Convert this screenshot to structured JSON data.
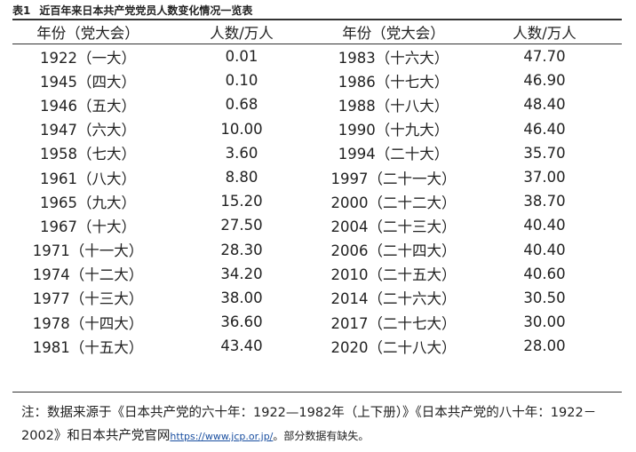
{
  "caption": {
    "number": "表1",
    "title": "近百年来日本共产党党员人数变化情况一览表"
  },
  "headers": [
    "年份（党大会）",
    "人数/万人",
    "年份（党大会）",
    "人数/万人"
  ],
  "rows": [
    [
      "1922（一大）",
      "0.01",
      "1983（十六大）",
      "47.70"
    ],
    [
      "1945（四大）",
      "0.10",
      "1986（十七大）",
      "46.90"
    ],
    [
      "1946（五大）",
      "0.68",
      "1988（十八大）",
      "48.40"
    ],
    [
      "1947（六大）",
      "10.00",
      "1990（十九大）",
      "46.40"
    ],
    [
      "1958（七大）",
      "3.60",
      "1994（二十大）",
      "35.70"
    ],
    [
      "1961（八大）",
      "8.80",
      "1997（二十一大）",
      "37.00"
    ],
    [
      "1965（九大）",
      "15.20",
      "2000（二十二大）",
      "38.70"
    ],
    [
      "1967（十大）",
      "27.50",
      "2004（二十三大）",
      "40.40"
    ],
    [
      "1971（十一大）",
      "28.30",
      "2006（二十四大）",
      "40.40"
    ],
    [
      "1974（十二大）",
      "34.20",
      "2010（二十五大）",
      "40.60"
    ],
    [
      "1977（十三大）",
      "38.00",
      "2014（二十六大）",
      "30.50"
    ],
    [
      "1978（十四大）",
      "36.60",
      "2017（二十七大）",
      "30.00"
    ],
    [
      "1981（十五大）",
      "43.40",
      "2020（二十八大）",
      "28.00"
    ]
  ],
  "note": {
    "text": "注：数据来源于《日本共产党的六十年：1922—1982年（上下册）》《日本共产党的八十年：1922－2002》和日本共产党官网",
    "url": "https://www.jcp.or.jp/",
    "tail": "。部分数据有缺失。"
  }
}
